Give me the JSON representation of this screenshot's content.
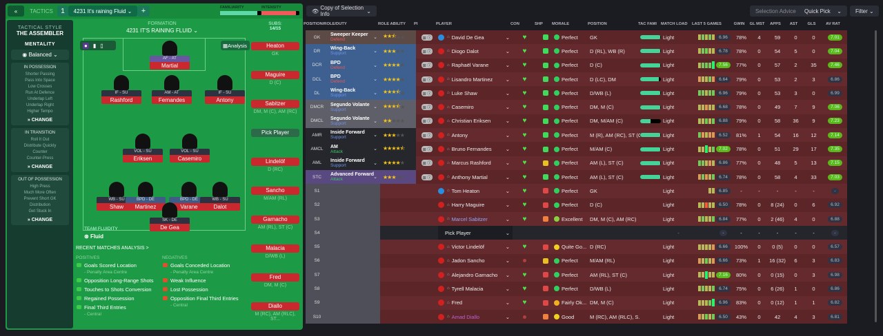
{
  "topbar": {
    "tactics_label": "TACTICS",
    "slot": "1",
    "tactic_name": "4231 It's raining Fluid",
    "familiarity_label": "FAMILIARITY",
    "intensity_label": "INTENSITY",
    "familiarity": 0.9,
    "intensity": 0.9
  },
  "tactical_panel": {
    "style_label": "TACTICAL STYLE",
    "style": "THE ASSEMBLER",
    "mentality_label": "MENTALITY",
    "mentality": "Balanced",
    "groups": [
      {
        "title": "IN POSSESSION",
        "items": [
          "Shorter Passing",
          "Pass Into Space",
          "Low Crosses",
          "Run At Defence",
          "Underlap Left",
          "Underlap Right",
          "Higher Tempo"
        ],
        "change": "CHANGE"
      },
      {
        "title": "IN TRANSITION",
        "items": [
          "Roll It Out",
          "Distribute Quickly",
          "Counter",
          "Counter-Press"
        ],
        "change": "CHANGE"
      },
      {
        "title": "OUT OF POSSESSION",
        "items": [
          "High Press",
          "Much More Often",
          "Prevent Short GK",
          "Distribution",
          "Get Stuck In"
        ],
        "change": "CHANGE"
      }
    ]
  },
  "formation": {
    "label": "FORMATION",
    "name": "4231 IT'S RAINING FLUID",
    "analysis": "Analysis",
    "subs_label": "SUBS:",
    "subs_count": "14/15",
    "fluidity_label": "TEAM FLUIDITY",
    "fluidity": "Fluid"
  },
  "pitch_players": [
    {
      "role": "AF - AT",
      "name": "Martial"
    },
    {
      "role": "IF - SU",
      "name": "Rashford"
    },
    {
      "role": "AM - AT",
      "name": "Fernandes"
    },
    {
      "role": "IF - SU",
      "name": "Antony"
    },
    {
      "role": "VOL - SU",
      "name": "Eriksen"
    },
    {
      "role": "VOL - SU",
      "name": "Casemiro"
    },
    {
      "role": "WB - SU",
      "name": "Shaw"
    },
    {
      "role": "BPD - DE",
      "name": "Martinez"
    },
    {
      "role": "BPD - DE",
      "name": "Varane"
    },
    {
      "role": "WB - SU",
      "name": "Dalot"
    },
    {
      "role": "SK - DE",
      "name": "De Gea"
    }
  ],
  "subs": [
    {
      "name": "Heaton",
      "pos": "GK"
    },
    {
      "name": "Maguire",
      "pos": "D (C)"
    },
    {
      "name": "Sabitzer",
      "pos": "DM, M (C), AM (RC)"
    },
    {
      "name": "Pick Player",
      "pos": ""
    },
    {
      "name": "Lindelöf",
      "pos": "D (RC)"
    },
    {
      "name": "Sancho",
      "pos": "M/AM (RL)"
    },
    {
      "name": "Garnacho",
      "pos": "AM (RL), ST (C)"
    },
    {
      "name": "Malacia",
      "pos": "D/WB (L)"
    },
    {
      "name": "Fred",
      "pos": "DM, M (C)"
    },
    {
      "name": "Diallo",
      "pos": "M (RC), AM (RLC), ST..."
    }
  ],
  "analysis": {
    "title": "RECENT MATCHES ANALYSIS >",
    "positives_label": "POSITIVES",
    "negatives_label": "NEGATIVES",
    "positives": [
      {
        "t": "Goals Scored Location",
        "s": "- Penalty Area Centre"
      },
      {
        "t": "Opposition Long-Range Shots",
        "s": ""
      },
      {
        "t": "Touches to Shots Conversion",
        "s": ""
      },
      {
        "t": "Regained Possession",
        "s": ""
      },
      {
        "t": "Final Third Entries",
        "s": "- Central"
      }
    ],
    "negatives": [
      {
        "t": "Goals Conceded Location",
        "s": "- Penalty Area Centre"
      },
      {
        "t": "Weak Influence",
        "s": ""
      },
      {
        "t": "Lost Possession",
        "s": ""
      },
      {
        "t": "Opposition Final Third Entries",
        "s": "- Central"
      }
    ]
  },
  "toolbar": {
    "view": "Copy of Selection Info",
    "selection_advice": "Selection Advice",
    "quick_pick": "Quick Pick",
    "filter": "Filter"
  },
  "columns": [
    "POSITION/ROLE/DUTY",
    "ROLE ABILITY",
    "PI",
    "PLAYER",
    "CON",
    "SHP",
    "MORALE",
    "POSITION",
    "TAC FAMI",
    "MATCH LOAD",
    "LAST 5 GAMES",
    "GWIN",
    "GL MST",
    "APPS",
    "AST",
    "GLS",
    "AV RAT"
  ],
  "colors": {
    "defend": "#e35a5a",
    "support": "#6e92e6",
    "attack": "#3fc468",
    "green": "#3ddc5a",
    "yellow": "#e8c020",
    "red": "#e04848",
    "orange": "#f08040"
  },
  "rows": [
    {
      "pos": "GK",
      "grp": "gk",
      "role": "Sweeper Keeper",
      "duty": "Defend",
      "stars": 2.5,
      "player": "David De Gea",
      "kit": "#2a8ee0",
      "con": "heart",
      "shp": "green",
      "morale": "Perfect",
      "mc": "green",
      "position": "GK",
      "fam": 0.95,
      "load": "Light",
      "last5": [
        "y",
        "g",
        "y",
        "g",
        "y"
      ],
      "r5": "6.96",
      "r5g": false,
      "gwin": "78%",
      "glmst": "4",
      "apps": "59",
      "ast": "0",
      "gls": "0",
      "av": "7.01",
      "avg": true
    },
    {
      "pos": "DR",
      "grp": "d",
      "role": "Wing-Back",
      "duty": "Support",
      "stars": 3,
      "player": "Diogo Dalot",
      "kit": "#d02020",
      "con": "heart",
      "shp": "green",
      "morale": "Perfect",
      "mc": "green",
      "position": "D (RL), WB (R)",
      "fam": 0.95,
      "load": "Light",
      "last5": [
        "y",
        "g",
        "g",
        "y",
        "y"
      ],
      "r5": "6.78",
      "r5g": false,
      "gwin": "78%",
      "glmst": "0",
      "apps": "54",
      "ast": "5",
      "gls": "0",
      "av": "7.04",
      "avg": true
    },
    {
      "pos": "DCR",
      "grp": "d",
      "role": "BPD",
      "duty": "Defend",
      "stars": 4,
      "player": "Raphaël Varane",
      "kit": "#d02020",
      "con": "heart",
      "shp": "green",
      "morale": "Perfect",
      "mc": "green",
      "position": "D (C)",
      "fam": 0.95,
      "load": "Light",
      "last5": [
        "y",
        "g",
        "g",
        "g",
        "G"
      ],
      "r5": "7.56",
      "r5g": true,
      "gwin": "77%",
      "glmst": "0",
      "apps": "57",
      "ast": "2",
      "gls": "35",
      "av": "7.46",
      "avg": true
    },
    {
      "pos": "DCL",
      "grp": "d",
      "role": "BPD",
      "duty": "Defend",
      "stars": 4,
      "player": "Lisandro Martinez",
      "kit": "#d02020",
      "con": "heart",
      "shp": "green",
      "morale": "Perfect",
      "mc": "green",
      "position": "D (LC), DM",
      "fam": 0.9,
      "load": "Light",
      "last5": [
        "o",
        "y",
        "y",
        "g",
        "o"
      ],
      "r5": "6.64",
      "r5g": false,
      "gwin": "79%",
      "glmst": "0",
      "apps": "53",
      "ast": "2",
      "gls": "3",
      "av": "6.86",
      "avg": false
    },
    {
      "pos": "DL",
      "grp": "d",
      "role": "Wing-Back",
      "duty": "Support",
      "stars": 3.5,
      "player": "Luke Shaw",
      "kit": "#d02020",
      "con": "heart",
      "shp": "green",
      "morale": "Perfect",
      "mc": "green",
      "position": "D/WB (L)",
      "fam": 0.95,
      "load": "Light",
      "last5": [
        "g",
        "g",
        "y",
        "g",
        "g"
      ],
      "r5": "6.96",
      "r5g": false,
      "gwin": "79%",
      "glmst": "0",
      "apps": "53",
      "ast": "3",
      "gls": "0",
      "av": "6.99",
      "avg": false
    },
    {
      "pos": "DMCR",
      "grp": "dm",
      "role": "Segundo Volante",
      "duty": "Support",
      "stars": 3.5,
      "player": "Casemiro",
      "kit": "#d02020",
      "con": "heart",
      "shp": "green",
      "morale": "Perfect",
      "mc": "green",
      "position": "DM, M (C)",
      "fam": 0.95,
      "load": "Light",
      "last5": [
        "y",
        "y",
        "o",
        "y",
        "y"
      ],
      "r5": "6.68",
      "r5g": false,
      "gwin": "78%",
      "glmst": "0",
      "apps": "49",
      "ast": "7",
      "gls": "9",
      "av": "7.06",
      "avg": true
    },
    {
      "pos": "DMCL",
      "grp": "dm",
      "role": "Segundo Volante",
      "duty": "Support",
      "stars": 2,
      "player": "Christian Eriksen",
      "kit": "#d02020",
      "con": "heart",
      "shp": "green",
      "morale": "Perfect",
      "mc": "green",
      "position": "DM, M/AM (C)",
      "fam": 0.5,
      "load": "Light",
      "last5": [
        "y",
        "y",
        "g",
        "y",
        "g"
      ],
      "r5": "6.88",
      "r5g": false,
      "gwin": "79%",
      "glmst": "0",
      "apps": "58",
      "ast": "36",
      "gls": "9",
      "av": "7.23",
      "avg": true
    },
    {
      "pos": "AMR",
      "grp": "am",
      "role": "Inside Forward",
      "duty": "Support",
      "stars": 3,
      "player": "Antony",
      "kit": "#d02020",
      "con": "heart",
      "shp": "green",
      "morale": "Perfect",
      "mc": "green",
      "position": "M (R), AM (RC), ST (C)",
      "fam": 0.95,
      "load": "Light",
      "last5": [
        "g",
        "o",
        "y",
        "o",
        "o"
      ],
      "r5": "6.52",
      "r5g": false,
      "gwin": "81%",
      "glmst": "1",
      "apps": "54",
      "ast": "16",
      "gls": "12",
      "av": "7.14",
      "avg": true
    },
    {
      "pos": "AMCL",
      "grp": "am",
      "role": "AM",
      "duty": "Attack",
      "stars": 4.5,
      "player": "Bruno Fernandes",
      "kit": "#d02020",
      "con": "heart",
      "shp": "green",
      "morale": "Perfect",
      "mc": "green",
      "position": "M/AM (C)",
      "fam": 0.95,
      "load": "Light",
      "last5": [
        "y",
        "y",
        "G",
        "y",
        "g"
      ],
      "r5": "7.02",
      "r5g": true,
      "gwin": "78%",
      "glmst": "0",
      "apps": "51",
      "ast": "29",
      "gls": "17",
      "av": "7.35",
      "avg": true
    },
    {
      "pos": "AML",
      "grp": "am",
      "role": "Inside Forward",
      "duty": "Support",
      "stars": 4,
      "player": "Marcus Rashford",
      "kit": "#d02020",
      "con": "heart",
      "shp": "yellow",
      "morale": "Perfect",
      "mc": "green",
      "position": "AM (L), ST (C)",
      "fam": 0.95,
      "load": "Light",
      "last5": [
        "g",
        "g",
        "y",
        "o",
        "y"
      ],
      "r5": "6.86",
      "r5g": false,
      "gwin": "77%",
      "glmst": "0",
      "apps": "48",
      "ast": "5",
      "gls": "13",
      "av": "7.15",
      "avg": true
    },
    {
      "pos": "STC",
      "grp": "st",
      "role": "Advanced Forward",
      "duty": "Attack",
      "stars": 3,
      "player": "Anthony Martial",
      "kit": "#d02020",
      "con": "heart",
      "shp": "green",
      "morale": "Perfect",
      "mc": "green",
      "position": "AM (L), ST (C)",
      "fam": 0.95,
      "load": "Light",
      "last5": [
        "o",
        "g",
        "o",
        "y",
        "g"
      ],
      "r5": "6.74",
      "r5g": false,
      "gwin": "78%",
      "glmst": "0",
      "apps": "58",
      "ast": "4",
      "gls": "33",
      "av": "7.03",
      "avg": true
    },
    {
      "pos": "S1",
      "grp": "s",
      "player": "Tom Heaton",
      "kit": "#2a8ee0",
      "con": "heart",
      "shp": "red",
      "morale": "Perfect",
      "mc": "green",
      "position": "GK",
      "load": "Light",
      "last5": [
        "y",
        "y"
      ],
      "r5": "6.85",
      "r5g": false,
      "gwin": "-",
      "glmst": "-",
      "apps": "-",
      "ast": "-",
      "gls": "-",
      "av": "-",
      "avg": false
    },
    {
      "pos": "S2",
      "grp": "s",
      "player": "Harry Maguire",
      "kit": "#d02020",
      "con": "heart",
      "shp": "red",
      "morale": "Perfect",
      "mc": "green",
      "position": "D (C)",
      "load": "Light",
      "last5": [
        "y",
        "y",
        "r",
        "y",
        "y"
      ],
      "r5": "6.50",
      "r5g": false,
      "gwin": "78%",
      "glmst": "0",
      "apps": "8 (24)",
      "ast": "0",
      "gls": "6",
      "av": "6.92",
      "avg": false
    },
    {
      "pos": "S3",
      "grp": "s",
      "player": "Marcel Sabitzer",
      "pc": "#8ea8ff",
      "kit": "#d02020",
      "con": "heart",
      "shp": "orange",
      "morale": "Excellent",
      "mc": "lime",
      "position": "DM, M (C), AM (RC)",
      "load": "Light",
      "last5": [
        "y",
        "g",
        "y",
        "y",
        "g"
      ],
      "r5": "6.84",
      "r5g": false,
      "gwin": "77%",
      "glmst": "0",
      "apps": "2 (46)",
      "ast": "4",
      "gls": "0",
      "av": "6.88",
      "avg": false
    },
    {
      "pos": "S4",
      "grp": "pick",
      "player": "Pick Player",
      "load": "-",
      "r5": "-",
      "gwin": "-",
      "glmst": "-",
      "apps": "-",
      "ast": "-",
      "gls": "-",
      "av": "-",
      "avg": false
    },
    {
      "pos": "S5",
      "grp": "s",
      "player": "Victor Lindelöf",
      "kit": "#d02020",
      "con": "heart",
      "shp": "red",
      "morale": "Quite Go...",
      "mc": "yellow",
      "position": "D (RC)",
      "load": "Light",
      "last5": [
        "y",
        "y",
        "y",
        "y",
        "o"
      ],
      "r5": "6.66",
      "r5g": false,
      "gwin": "100%",
      "glmst": "0",
      "apps": "0 (5)",
      "ast": "0",
      "gls": "0",
      "av": "6.57",
      "avg": false
    },
    {
      "pos": "S6",
      "grp": "s",
      "player": "Jadon Sancho",
      "kit": "#d02020",
      "con": "dot",
      "shp": "yellow",
      "morale": "Perfect",
      "mc": "green",
      "position": "M/AM (RL)",
      "load": "Light",
      "last5": [
        "o",
        "y",
        "g",
        "y",
        "o"
      ],
      "r5": "6.66",
      "r5g": false,
      "gwin": "73%",
      "glmst": "1",
      "apps": "16 (32)",
      "ast": "6",
      "gls": "3",
      "av": "6.83",
      "avg": false
    },
    {
      "pos": "S7",
      "grp": "s",
      "player": "Alejandro Garnacho",
      "kit": "#d02020",
      "con": "heart",
      "shp": "red",
      "morale": "Perfect",
      "mc": "green",
      "position": "AM (RL), ST (C)",
      "load": "Light",
      "last5": [
        "y",
        "y",
        "G",
        "y",
        "y"
      ],
      "r5": "7.16",
      "r5g": true,
      "gwin": "80%",
      "glmst": "0",
      "apps": "0 (15)",
      "ast": "0",
      "gls": "3",
      "av": "6.98",
      "avg": false
    },
    {
      "pos": "S8",
      "grp": "s",
      "player": "Tyrell Malacia",
      "kit": "#d02020",
      "con": "heart",
      "shp": "red",
      "morale": "Perfect",
      "mc": "green",
      "position": "D/WB (L)",
      "load": "Light",
      "last5": [
        "y",
        "g",
        "y",
        "y",
        "g"
      ],
      "r5": "6.74",
      "r5g": false,
      "gwin": "75%",
      "glmst": "0",
      "apps": "6 (26)",
      "ast": "1",
      "gls": "0",
      "av": "6.86",
      "avg": false
    },
    {
      "pos": "S9",
      "grp": "s",
      "player": "Fred",
      "kit": "#d02020",
      "con": "heart",
      "shp": "red",
      "morale": "Fairly Ok...",
      "mc": "orange",
      "position": "DM, M (C)",
      "load": "Light",
      "last5": [
        "y",
        "y",
        "y",
        "g",
        "G"
      ],
      "r5": "6.96",
      "r5g": false,
      "gwin": "83%",
      "glmst": "0",
      "apps": "0 (12)",
      "ast": "1",
      "gls": "1",
      "av": "6.82",
      "avg": false
    },
    {
      "pos": "S10",
      "grp": "s",
      "player": "Amad Diallo",
      "pc": "#c060d0",
      "kit": "#d02020",
      "con": "dot",
      "shp": "orange",
      "morale": "Good",
      "mc": "yellow",
      "position": "M (RC), AM (RLC), S...",
      "load": "Light",
      "last5": [
        "o",
        "y",
        "g",
        "y",
        "g"
      ],
      "r5": "6.50",
      "r5g": false,
      "gwin": "43%",
      "glmst": "0",
      "apps": "42",
      "ast": "4",
      "gls": "3",
      "av": "6.81",
      "avg": false
    }
  ]
}
